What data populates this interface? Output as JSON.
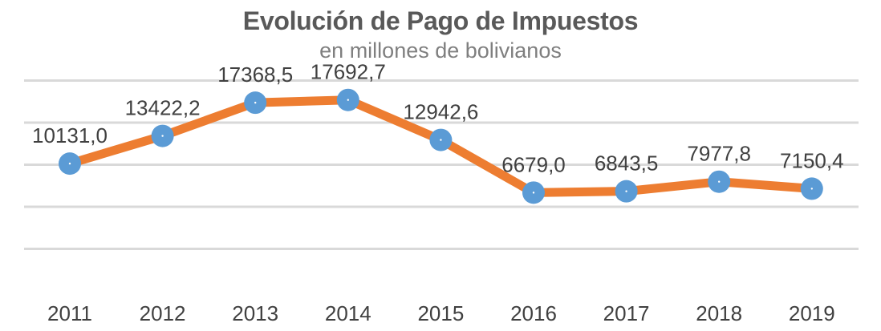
{
  "chart_data": {
    "type": "line",
    "title": "Evolución de Pago de Impuestos",
    "subtitle": "en millones de bolivianos",
    "x": [
      "2011",
      "2012",
      "2013",
      "2014",
      "2015",
      "2016",
      "2017",
      "2018",
      "2019"
    ],
    "series": [
      {
        "values": [
          10131.0,
          13422.2,
          17368.5,
          17692.7,
          12942.6,
          6679.0,
          6843.5,
          7977.8,
          7150.4
        ],
        "labels": [
          "10131,0",
          "13422,2",
          "17368,5",
          "17692,7",
          "12942,6",
          "6679,0",
          "6843,5",
          "7977,8",
          "7150,4"
        ],
        "line_color": "#ed7d31",
        "marker_color": "#5b9bd5"
      }
    ],
    "ylim": [
      -5000,
      25000
    ],
    "yaxis_labels_shown": false,
    "grid": true,
    "legend": "none",
    "gridline_color": "#d9d9d9"
  }
}
